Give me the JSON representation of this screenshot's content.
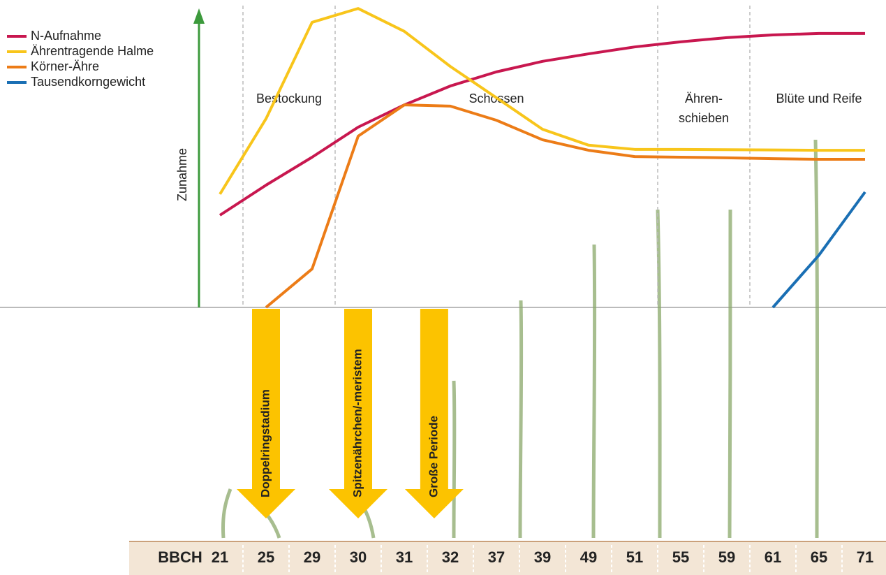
{
  "chart_data": {
    "type": "line",
    "y_label": "Zunahme",
    "x_label": "BBCH",
    "categories": [
      "21",
      "25",
      "29",
      "30",
      "31",
      "32",
      "37",
      "39",
      "49",
      "51",
      "55",
      "59",
      "61",
      "65",
      "71"
    ],
    "ylim": [
      0,
      100
    ],
    "series": [
      {
        "name": "N-Aufnahme",
        "color": "#c8174f",
        "values": [
          30.7,
          40.7,
          50,
          60,
          67.4,
          73.7,
          78.4,
          81.9,
          84.4,
          86.7,
          88.4,
          89.8,
          90.7,
          91.2,
          91.2
        ]
      },
      {
        "name": "Ährentragende Halme",
        "color": "#f8c51b",
        "values": [
          37.7,
          62.8,
          94.9,
          99.5,
          91.9,
          80.2,
          69.8,
          59.3,
          54,
          52.6,
          52.6,
          52.5,
          52.4,
          52.3,
          52.3
        ]
      },
      {
        "name": "Körner-Ähre",
        "color": "#ec7c17",
        "values": [
          null,
          0,
          12.8,
          57,
          67.4,
          67,
          62.3,
          55.8,
          52.3,
          50.2,
          50,
          49.8,
          49.5,
          49.3,
          49.3
        ]
      },
      {
        "name": "Tausendkorngewicht",
        "color": "#1a6fb4",
        "values": [
          null,
          null,
          null,
          null,
          null,
          null,
          null,
          null,
          null,
          null,
          null,
          null,
          0,
          17.4,
          38.4
        ]
      }
    ],
    "phases": [
      {
        "lines": [
          "Bestockung"
        ],
        "at": 1.5
      },
      {
        "lines": [
          "Schossen"
        ],
        "at": 6
      },
      {
        "lines": [
          "Ähren-",
          "schieben"
        ],
        "at": 10.5
      },
      {
        "lines": [
          "Blüte und Reife"
        ],
        "at": 13
      }
    ],
    "phase_dividers": [
      0.5,
      2.5,
      9.5,
      11.5
    ],
    "stages": [
      {
        "label": "Doppelringstadium",
        "at": 1
      },
      {
        "label": "Spitzenährchen/-meristem",
        "at": 3
      },
      {
        "label": "Große Periode",
        "at": 4.65
      }
    ]
  }
}
